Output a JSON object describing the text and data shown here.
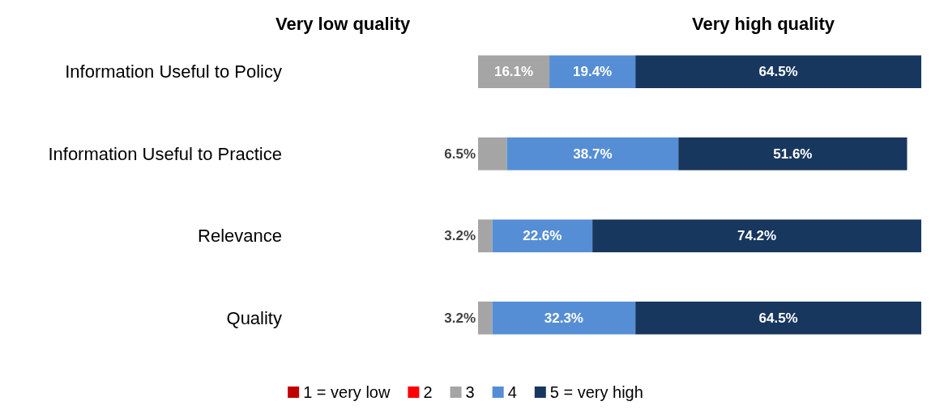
{
  "chart_data": {
    "type": "bar",
    "orientation": "horizontal",
    "stacked": true,
    "categories": [
      "Information Useful to Policy",
      "Information Useful to Practice",
      "Relevance",
      "Quality"
    ],
    "tick_labels": "y",
    "grid": false,
    "legend": "bottom",
    "annotations": [
      "Very low quality",
      "Very high quality"
    ],
    "series": [
      {
        "name": "1 = very low",
        "color": "#c00000",
        "values": [
          0,
          0,
          0,
          0
        ],
        "value_labels": [
          null,
          null,
          null,
          null
        ]
      },
      {
        "name": "2",
        "color": "#ff0000",
        "values": [
          0,
          0,
          0,
          0
        ],
        "value_labels": [
          null,
          null,
          null,
          null
        ]
      },
      {
        "name": "3",
        "color": "#a5a5a5",
        "values": [
          16.1,
          6.5,
          3.2,
          3.2
        ],
        "value_labels": [
          "16.1%",
          "6.5%",
          "3.2%",
          "3.2%"
        ]
      },
      {
        "name": "4",
        "color": "#558ed5",
        "values": [
          19.4,
          38.7,
          22.6,
          32.3
        ],
        "value_labels": [
          "19.4%",
          "38.7%",
          "22.6%",
          "32.3%"
        ]
      },
      {
        "name": "5 = very high",
        "color": "#17375e",
        "values": [
          64.5,
          51.6,
          74.2,
          64.5
        ],
        "value_labels": [
          "64.5%",
          "51.6%",
          "74.2%",
          "64.5%"
        ]
      }
    ]
  }
}
